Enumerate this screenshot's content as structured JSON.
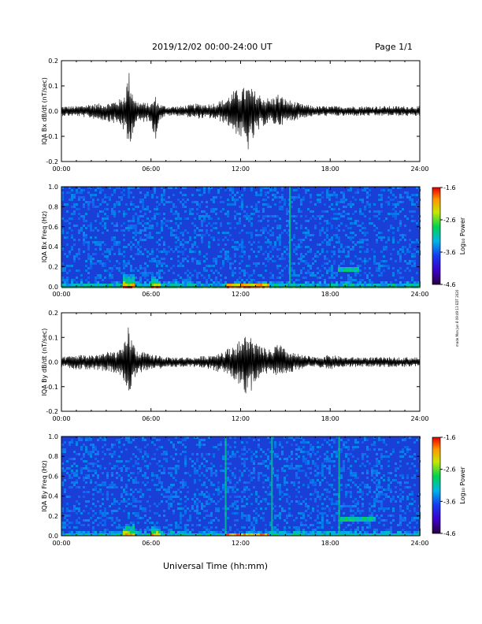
{
  "header": {
    "title": "2019/12/02  00:00-24:00 UT",
    "page": "Page 1/1"
  },
  "credit": "made Mon Jun 8 09:49:13 EDT 2020",
  "colors": {
    "trace": "#000000",
    "spectrogram_background": "#1a3fd6"
  },
  "chart_data": [
    {
      "type": "line",
      "ylabel": "IQA Bx dB/dt (nT/sec)",
      "xlabel": "",
      "xlim": [
        0,
        24
      ],
      "ylim": [
        -0.2,
        0.2
      ],
      "xticks": [
        "00:00",
        "06:00",
        "12:00",
        "18:00",
        "24:00"
      ],
      "yticks": [
        "-0.2",
        "-0.1",
        "0.0",
        "0.1",
        "0.2"
      ],
      "envelope": {
        "x": [
          0,
          1,
          2,
          3,
          4,
          4.3,
          4.5,
          4.7,
          5,
          6,
          6.3,
          6.5,
          7,
          8,
          9,
          10,
          11,
          11.5,
          12,
          12.5,
          13,
          13.5,
          14,
          14.5,
          15,
          15.5,
          16,
          17,
          18,
          19,
          20,
          21,
          22,
          23,
          24
        ],
        "ymax": [
          0.02,
          0.02,
          0.03,
          0.03,
          0.05,
          0.08,
          0.17,
          0.1,
          0.04,
          0.03,
          0.06,
          0.03,
          0.02,
          0.02,
          0.03,
          0.03,
          0.05,
          0.08,
          0.09,
          0.1,
          0.08,
          0.06,
          0.05,
          0.07,
          0.05,
          0.04,
          0.03,
          0.02,
          0.02,
          0.02,
          0.02,
          0.02,
          0.02,
          0.02,
          0.02
        ],
        "ymin": [
          -0.02,
          -0.02,
          -0.03,
          -0.04,
          -0.06,
          -0.1,
          -0.17,
          -0.1,
          -0.05,
          -0.04,
          -0.14,
          -0.04,
          -0.02,
          -0.02,
          -0.03,
          -0.03,
          -0.05,
          -0.08,
          -0.11,
          -0.16,
          -0.1,
          -0.06,
          -0.05,
          -0.06,
          -0.05,
          -0.04,
          -0.03,
          -0.02,
          -0.02,
          -0.02,
          -0.02,
          -0.02,
          -0.02,
          -0.02,
          -0.02
        ]
      }
    },
    {
      "type": "heatmap",
      "ylabel": "IQA Bx Freq (Hz)",
      "xlim": [
        0,
        24
      ],
      "ylim": [
        0,
        1.0
      ],
      "xticks": [
        "00:00",
        "06:00",
        "12:00",
        "18:00",
        "24:00"
      ],
      "yticks": [
        "0.0",
        "0.2",
        "0.4",
        "0.6",
        "0.8",
        "1.0"
      ],
      "colorbar": {
        "label": "Log₁₀ Power",
        "range": [
          -4.6,
          -1.6
        ],
        "ticks": [
          "-1.6",
          "-2.6",
          "-3.6",
          "-4.6"
        ]
      },
      "features": [
        {
          "kind": "burst",
          "x": 4.5,
          "fmax": 0.15
        },
        {
          "kind": "burst",
          "x": 6.3,
          "fmax": 0.1
        },
        {
          "kind": "band",
          "x": [
            11,
            14
          ],
          "fmax": 0.03
        },
        {
          "kind": "line",
          "x": 15.3,
          "fmax": 1.0
        },
        {
          "kind": "band",
          "x": [
            18.5,
            20
          ],
          "f": 0.17
        }
      ]
    },
    {
      "type": "line",
      "ylabel": "IQA By dB/dt (nT/sec)",
      "xlabel": "",
      "xlim": [
        0,
        24
      ],
      "ylim": [
        -0.2,
        0.2
      ],
      "xticks": [
        "00:00",
        "06:00",
        "12:00",
        "18:00",
        "24:00"
      ],
      "yticks": [
        "-0.2",
        "-0.1",
        "0.0",
        "0.1",
        "0.2"
      ],
      "envelope": {
        "x": [
          0,
          1,
          2,
          3,
          4,
          4.3,
          4.5,
          4.7,
          5,
          6,
          6.3,
          6.5,
          7,
          8,
          9,
          10,
          11,
          11.5,
          12,
          12.5,
          13,
          13.5,
          14,
          14.5,
          15,
          15.5,
          16,
          17,
          18,
          19,
          20,
          21,
          22,
          23,
          24
        ],
        "ymax": [
          0.02,
          0.03,
          0.03,
          0.04,
          0.05,
          0.09,
          0.16,
          0.1,
          0.05,
          0.03,
          0.03,
          0.03,
          0.02,
          0.02,
          0.02,
          0.03,
          0.05,
          0.07,
          0.09,
          0.12,
          0.08,
          0.06,
          0.05,
          0.08,
          0.05,
          0.04,
          0.03,
          0.02,
          0.03,
          0.02,
          0.02,
          0.02,
          0.02,
          0.02,
          0.02
        ],
        "ymin": [
          -0.02,
          -0.03,
          -0.03,
          -0.04,
          -0.06,
          -0.1,
          -0.17,
          -0.1,
          -0.05,
          -0.03,
          -0.03,
          -0.03,
          -0.02,
          -0.02,
          -0.02,
          -0.03,
          -0.05,
          -0.07,
          -0.1,
          -0.14,
          -0.09,
          -0.06,
          -0.05,
          -0.06,
          -0.05,
          -0.04,
          -0.03,
          -0.02,
          -0.03,
          -0.02,
          -0.02,
          -0.02,
          -0.02,
          -0.02,
          -0.02
        ]
      }
    },
    {
      "type": "heatmap",
      "ylabel": "IQA By Freq (Hz)",
      "xlabel": "Universal Time (hh:mm)",
      "xlim": [
        0,
        24
      ],
      "ylim": [
        0,
        1.0
      ],
      "xticks": [
        "00:00",
        "06:00",
        "12:00",
        "18:00",
        "24:00"
      ],
      "yticks": [
        "0.0",
        "0.2",
        "0.4",
        "0.6",
        "0.8",
        "1.0"
      ],
      "colorbar": {
        "label": "Log₁₀ Power",
        "range": [
          -4.6,
          -1.6
        ],
        "ticks": [
          "-1.6",
          "-2.6",
          "-3.6",
          "-4.6"
        ]
      },
      "features": [
        {
          "kind": "burst",
          "x": 4.5,
          "fmax": 0.15
        },
        {
          "kind": "burst",
          "x": 6.3,
          "fmax": 0.1
        },
        {
          "kind": "band",
          "x": [
            11,
            14
          ],
          "fmax": 0.03
        },
        {
          "kind": "line",
          "x": 11.0,
          "fmax": 1.0
        },
        {
          "kind": "line",
          "x": 14.1,
          "fmax": 1.0
        },
        {
          "kind": "line",
          "x": 18.6,
          "fmax": 1.0
        },
        {
          "kind": "band",
          "x": [
            18.6,
            21
          ],
          "f": 0.17
        }
      ]
    }
  ]
}
